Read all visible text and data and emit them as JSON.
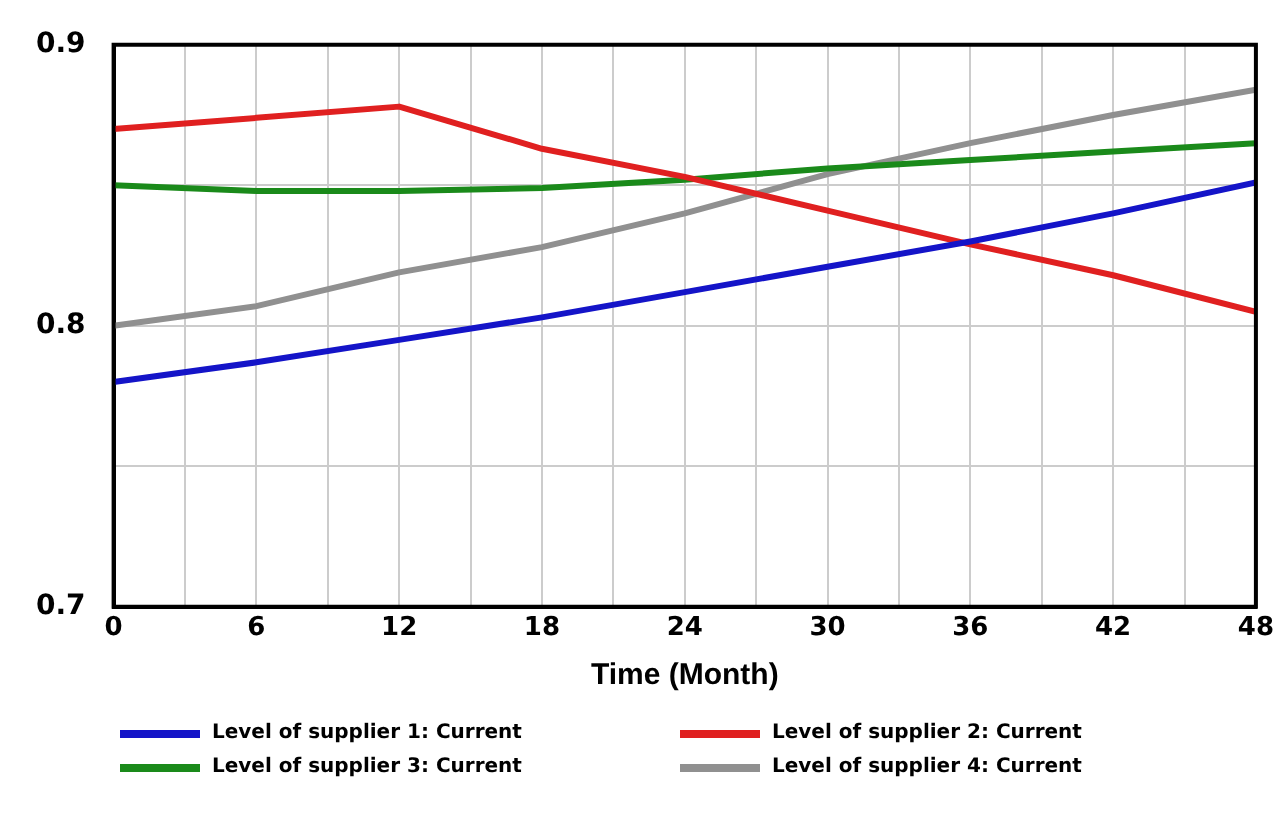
{
  "chart_data": {
    "type": "line",
    "xlabel": "Time (Month)",
    "x": [
      0,
      6,
      12,
      18,
      24,
      30,
      36,
      42,
      48
    ],
    "series": [
      {
        "name": "Level of supplier 1: Current",
        "color": "#1414c8",
        "values": [
          0.78,
          0.787,
          0.795,
          0.803,
          0.812,
          0.821,
          0.83,
          0.84,
          0.851
        ]
      },
      {
        "name": "Level of supplier 2: Current",
        "color": "#e02020",
        "values": [
          0.87,
          0.874,
          0.878,
          0.863,
          0.853,
          0.841,
          0.829,
          0.818,
          0.805
        ]
      },
      {
        "name": "Level of supplier 3: Current",
        "color": "#1a8a1a",
        "values": [
          0.85,
          0.848,
          0.848,
          0.849,
          0.852,
          0.856,
          0.859,
          0.862,
          0.865
        ]
      },
      {
        "name": "Level of supplier 4: Current",
        "color": "#909090",
        "values": [
          0.8,
          0.807,
          0.819,
          0.828,
          0.84,
          0.854,
          0.865,
          0.875,
          0.884
        ]
      }
    ],
    "xlim": [
      0,
      48
    ],
    "xticks": [
      0,
      {
        "value": 3,
        "label": null
      },
      6,
      {
        "value": 9,
        "label": null
      },
      12,
      {
        "value": 15,
        "label": null
      },
      18,
      {
        "value": 21,
        "label": null
      },
      24,
      {
        "value": 27,
        "label": null
      },
      30,
      {
        "value": 33,
        "label": null
      },
      36,
      {
        "value": 39,
        "label": null
      },
      42,
      {
        "value": 45,
        "label": null
      },
      48
    ],
    "ylim": [
      0.7,
      0.9
    ],
    "yticks": [
      0.7,
      {
        "value": 0.75,
        "label": null
      },
      0.8,
      {
        "value": 0.85,
        "label": null
      },
      0.9
    ],
    "grid": true,
    "legend": "bottom",
    "marker": "none",
    "line_style": "solid"
  }
}
